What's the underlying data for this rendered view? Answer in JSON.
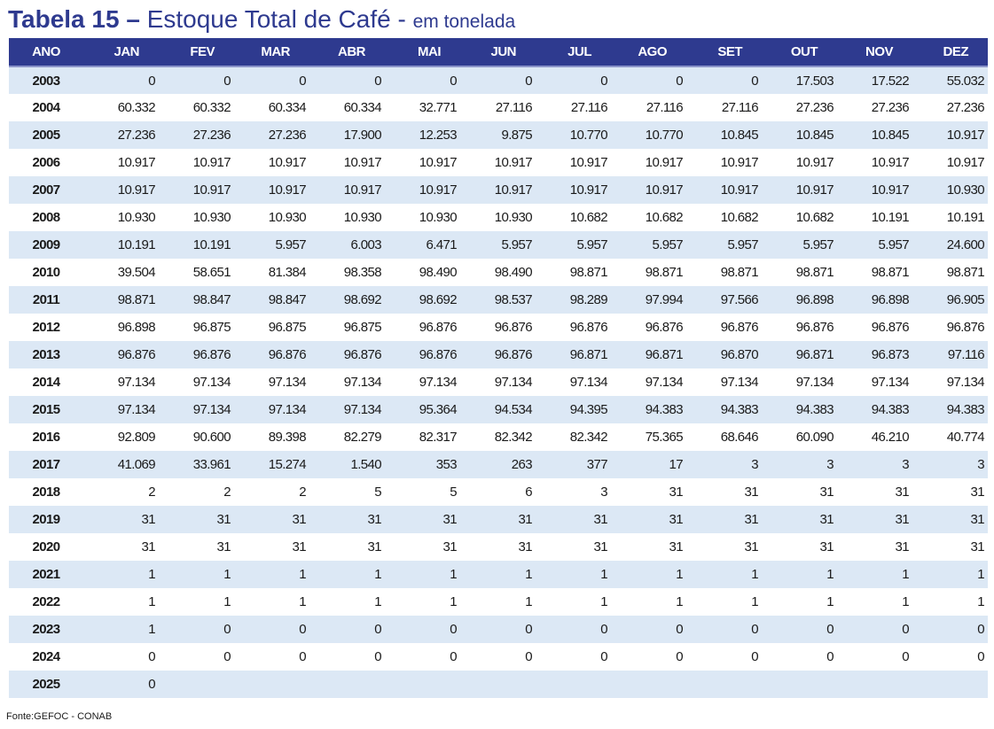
{
  "title": {
    "bold": "Tabela 15 – ",
    "main": "Estoque Total de Café - ",
    "unit": "em tonelada"
  },
  "table": {
    "headers": [
      "ANO",
      "JAN",
      "FEV",
      "MAR",
      "ABR",
      "MAI",
      "JUN",
      "JUL",
      "AGO",
      "SET",
      "OUT",
      "NOV",
      "DEZ"
    ],
    "rows": [
      {
        "year": "2003",
        "values": [
          "0",
          "0",
          "0",
          "0",
          "0",
          "0",
          "0",
          "0",
          "0",
          "17.503",
          "17.522",
          "55.032"
        ]
      },
      {
        "year": "2004",
        "values": [
          "60.332",
          "60.332",
          "60.334",
          "60.334",
          "32.771",
          "27.116",
          "27.116",
          "27.116",
          "27.116",
          "27.236",
          "27.236",
          "27.236"
        ]
      },
      {
        "year": "2005",
        "values": [
          "27.236",
          "27.236",
          "27.236",
          "17.900",
          "12.253",
          "9.875",
          "10.770",
          "10.770",
          "10.845",
          "10.845",
          "10.845",
          "10.917"
        ]
      },
      {
        "year": "2006",
        "values": [
          "10.917",
          "10.917",
          "10.917",
          "10.917",
          "10.917",
          "10.917",
          "10.917",
          "10.917",
          "10.917",
          "10.917",
          "10.917",
          "10.917"
        ]
      },
      {
        "year": "2007",
        "values": [
          "10.917",
          "10.917",
          "10.917",
          "10.917",
          "10.917",
          "10.917",
          "10.917",
          "10.917",
          "10.917",
          "10.917",
          "10.917",
          "10.930"
        ]
      },
      {
        "year": "2008",
        "values": [
          "10.930",
          "10.930",
          "10.930",
          "10.930",
          "10.930",
          "10.930",
          "10.682",
          "10.682",
          "10.682",
          "10.682",
          "10.191",
          "10.191"
        ]
      },
      {
        "year": "2009",
        "values": [
          "10.191",
          "10.191",
          "5.957",
          "6.003",
          "6.471",
          "5.957",
          "5.957",
          "5.957",
          "5.957",
          "5.957",
          "5.957",
          "24.600"
        ]
      },
      {
        "year": "2010",
        "values": [
          "39.504",
          "58.651",
          "81.384",
          "98.358",
          "98.490",
          "98.490",
          "98.871",
          "98.871",
          "98.871",
          "98.871",
          "98.871",
          "98.871"
        ]
      },
      {
        "year": "2011",
        "values": [
          "98.871",
          "98.847",
          "98.847",
          "98.692",
          "98.692",
          "98.537",
          "98.289",
          "97.994",
          "97.566",
          "96.898",
          "96.898",
          "96.905"
        ]
      },
      {
        "year": "2012",
        "values": [
          "96.898",
          "96.875",
          "96.875",
          "96.875",
          "96.876",
          "96.876",
          "96.876",
          "96.876",
          "96.876",
          "96.876",
          "96.876",
          "96.876"
        ]
      },
      {
        "year": "2013",
        "values": [
          "96.876",
          "96.876",
          "96.876",
          "96.876",
          "96.876",
          "96.876",
          "96.871",
          "96.871",
          "96.870",
          "96.871",
          "96.873",
          "97.116"
        ]
      },
      {
        "year": "2014",
        "values": [
          "97.134",
          "97.134",
          "97.134",
          "97.134",
          "97.134",
          "97.134",
          "97.134",
          "97.134",
          "97.134",
          "97.134",
          "97.134",
          "97.134"
        ]
      },
      {
        "year": "2015",
        "values": [
          "97.134",
          "97.134",
          "97.134",
          "97.134",
          "95.364",
          "94.534",
          "94.395",
          "94.383",
          "94.383",
          "94.383",
          "94.383",
          "94.383"
        ]
      },
      {
        "year": "2016",
        "values": [
          "92.809",
          "90.600",
          "89.398",
          "82.279",
          "82.317",
          "82.342",
          "82.342",
          "75.365",
          "68.646",
          "60.090",
          "46.210",
          "40.774"
        ]
      },
      {
        "year": "2017",
        "values": [
          "41.069",
          "33.961",
          "15.274",
          "1.540",
          "353",
          "263",
          "377",
          "17",
          "3",
          "3",
          "3",
          "3"
        ]
      },
      {
        "year": "2018",
        "values": [
          "2",
          "2",
          "2",
          "5",
          "5",
          "6",
          "3",
          "31",
          "31",
          "31",
          "31",
          "31"
        ]
      },
      {
        "year": "2019",
        "values": [
          "31",
          "31",
          "31",
          "31",
          "31",
          "31",
          "31",
          "31",
          "31",
          "31",
          "31",
          "31"
        ]
      },
      {
        "year": "2020",
        "values": [
          "31",
          "31",
          "31",
          "31",
          "31",
          "31",
          "31",
          "31",
          "31",
          "31",
          "31",
          "31"
        ]
      },
      {
        "year": "2021",
        "values": [
          "1",
          "1",
          "1",
          "1",
          "1",
          "1",
          "1",
          "1",
          "1",
          "1",
          "1",
          "1"
        ]
      },
      {
        "year": "2022",
        "values": [
          "1",
          "1",
          "1",
          "1",
          "1",
          "1",
          "1",
          "1",
          "1",
          "1",
          "1",
          "1"
        ]
      },
      {
        "year": "2023",
        "values": [
          "1",
          "0",
          "0",
          "0",
          "0",
          "0",
          "0",
          "0",
          "0",
          "0",
          "0",
          "0"
        ]
      },
      {
        "year": "2024",
        "values": [
          "0",
          "0",
          "0",
          "0",
          "0",
          "0",
          "0",
          "0",
          "0",
          "0",
          "0",
          "0"
        ]
      },
      {
        "year": "2025",
        "values": [
          "0",
          "",
          "",
          "",
          "",
          "",
          "",
          "",
          "",
          "",
          "",
          ""
        ]
      }
    ]
  },
  "source": "Fonte:GEFOC - CONAB",
  "colors": {
    "header_bg": "#2e3a8f",
    "title_text": "#2e3a8f",
    "stripe": "#dce8f5"
  }
}
